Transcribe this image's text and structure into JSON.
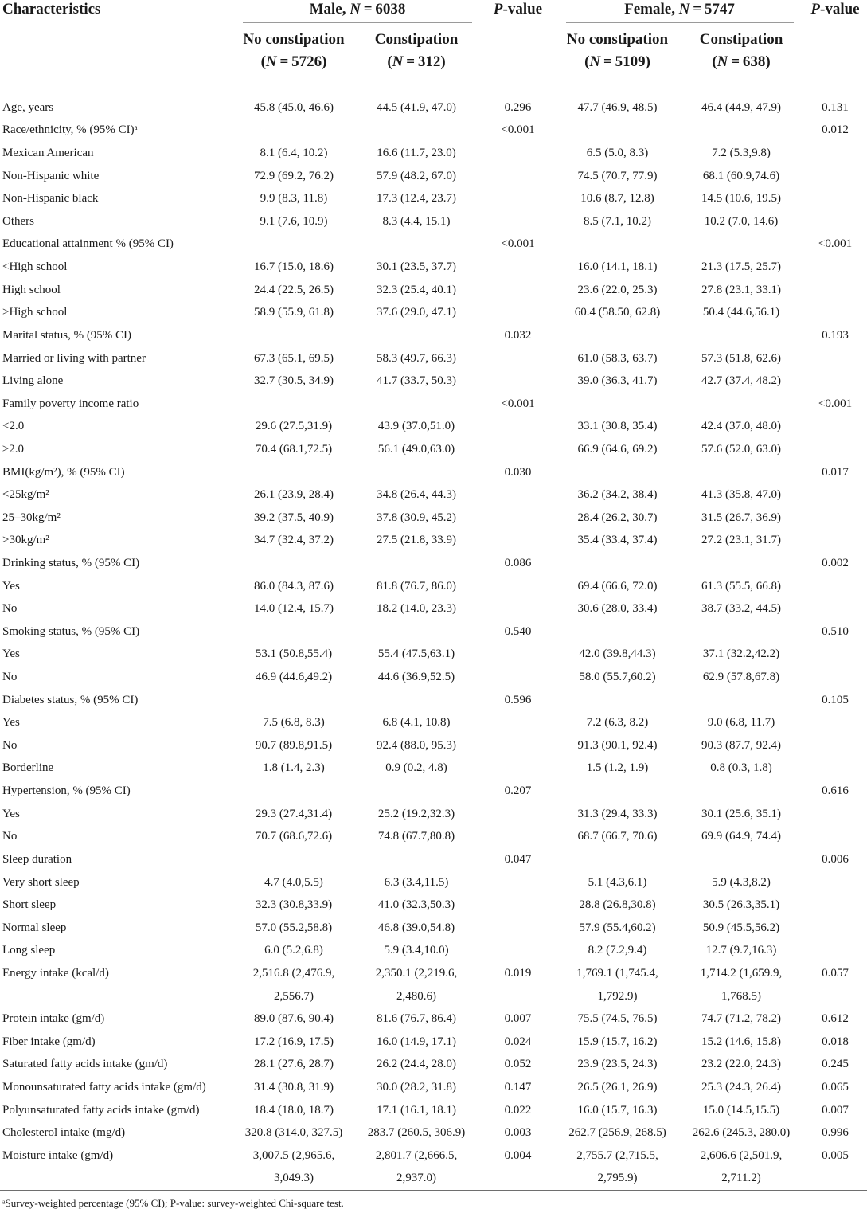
{
  "header": {
    "characteristics": "Characteristics",
    "male_group": "Male, N = 6038",
    "female_group": "Female, N = 5747",
    "pvalue_male": "P-value",
    "pvalue_female": "P-value",
    "male_no_constipation": "No constipation",
    "male_no_constipation_n": "(N = 5726)",
    "male_constipation": "Constipation",
    "male_constipation_n": "(N = 312)",
    "female_no_constipation": "No constipation",
    "female_no_constipation_n": "(N = 5109)",
    "female_constipation": "Constipation",
    "female_constipation_n": "(N = 638)"
  },
  "rows": [
    [
      "Age, years",
      "45.8 (45.0, 46.6)",
      "44.5 (41.9, 47.0)",
      "0.296",
      "47.7 (46.9, 48.5)",
      "46.4 (44.9, 47.9)",
      "0.131"
    ],
    [
      "Race/ethnicity, % (95% CI)ᵃ",
      "",
      "",
      "<0.001",
      "",
      "",
      "0.012"
    ],
    [
      "Mexican American",
      "8.1 (6.4, 10.2)",
      "16.6 (11.7, 23.0)",
      "",
      "6.5 (5.0, 8.3)",
      "7.2 (5.3,9.8)",
      ""
    ],
    [
      "Non-Hispanic white",
      "72.9 (69.2, 76.2)",
      "57.9 (48.2, 67.0)",
      "",
      "74.5 (70.7, 77.9)",
      "68.1 (60.9,74.6)",
      ""
    ],
    [
      "Non-Hispanic black",
      "9.9 (8.3, 11.8)",
      "17.3 (12.4, 23.7)",
      "",
      "10.6 (8.7, 12.8)",
      "14.5 (10.6, 19.5)",
      ""
    ],
    [
      "Others",
      "9.1 (7.6, 10.9)",
      "8.3 (4.4, 15.1)",
      "",
      "8.5 (7.1, 10.2)",
      "10.2 (7.0, 14.6)",
      ""
    ],
    [
      "Educational attainment % (95% CI)",
      "",
      "",
      "<0.001",
      "",
      "",
      "<0.001"
    ],
    [
      "<High school",
      "16.7 (15.0, 18.6)",
      "30.1 (23.5, 37.7)",
      "",
      "16.0 (14.1, 18.1)",
      "21.3 (17.5, 25.7)",
      ""
    ],
    [
      "High school",
      "24.4 (22.5, 26.5)",
      "32.3 (25.4, 40.1)",
      "",
      "23.6 (22.0, 25.3)",
      "27.8 (23.1, 33.1)",
      ""
    ],
    [
      ">High school",
      "58.9 (55.9, 61.8)",
      "37.6 (29.0, 47.1)",
      "",
      "60.4 (58.50, 62.8)",
      "50.4 (44.6,56.1)",
      ""
    ],
    [
      "Marital status, % (95% CI)",
      "",
      "",
      "0.032",
      "",
      "",
      "0.193"
    ],
    [
      "Married or living with partner",
      "67.3 (65.1, 69.5)",
      "58.3 (49.7, 66.3)",
      "",
      "61.0 (58.3, 63.7)",
      "57.3 (51.8, 62.6)",
      ""
    ],
    [
      "Living alone",
      "32.7 (30.5, 34.9)",
      "41.7 (33.7, 50.3)",
      "",
      "39.0 (36.3, 41.7)",
      "42.7 (37.4, 48.2)",
      ""
    ],
    [
      "Family poverty income ratio",
      "",
      "",
      "<0.001",
      "",
      "",
      "<0.001"
    ],
    [
      "<2.0",
      "29.6 (27.5,31.9)",
      "43.9 (37.0,51.0)",
      "",
      "33.1 (30.8, 35.4)",
      "42.4 (37.0, 48.0)",
      ""
    ],
    [
      "≥2.0",
      "70.4 (68.1,72.5)",
      "56.1 (49.0,63.0)",
      "",
      "66.9 (64.6, 69.2)",
      "57.6 (52.0, 63.0)",
      ""
    ],
    [
      "BMI(kg/m²), % (95% CI)",
      "",
      "",
      "0.030",
      "",
      "",
      "0.017"
    ],
    [
      "<25kg/m²",
      "26.1 (23.9, 28.4)",
      "34.8 (26.4, 44.3)",
      "",
      "36.2 (34.2, 38.4)",
      "41.3 (35.8, 47.0)",
      ""
    ],
    [
      "25–30kg/m²",
      "39.2 (37.5, 40.9)",
      "37.8 (30.9, 45.2)",
      "",
      "28.4 (26.2, 30.7)",
      "31.5 (26.7, 36.9)",
      ""
    ],
    [
      ">30kg/m²",
      "34.7 (32.4, 37.2)",
      "27.5 (21.8, 33.9)",
      "",
      "35.4 (33.4, 37.4)",
      "27.2 (23.1, 31.7)",
      ""
    ],
    [
      "Drinking status, % (95% CI)",
      "",
      "",
      "0.086",
      "",
      "",
      "0.002"
    ],
    [
      "Yes",
      "86.0 (84.3, 87.6)",
      "81.8 (76.7, 86.0)",
      "",
      "69.4 (66.6, 72.0)",
      "61.3 (55.5, 66.8)",
      ""
    ],
    [
      "No",
      "14.0 (12.4, 15.7)",
      "18.2 (14.0, 23.3)",
      "",
      "30.6 (28.0, 33.4)",
      "38.7 (33.2, 44.5)",
      ""
    ],
    [
      "Smoking status, % (95% CI)",
      "",
      "",
      "0.540",
      "",
      "",
      "0.510"
    ],
    [
      "Yes",
      "53.1 (50.8,55.4)",
      "55.4 (47.5,63.1)",
      "",
      "42.0 (39.8,44.3)",
      "37.1 (32.2,42.2)",
      ""
    ],
    [
      "No",
      "46.9 (44.6,49.2)",
      "44.6 (36.9,52.5)",
      "",
      "58.0 (55.7,60.2)",
      "62.9 (57.8,67.8)",
      ""
    ],
    [
      "Diabetes status, % (95% CI)",
      "",
      "",
      "0.596",
      "",
      "",
      "0.105"
    ],
    [
      "Yes",
      "7.5 (6.8, 8.3)",
      "6.8 (4.1, 10.8)",
      "",
      "7.2 (6.3, 8.2)",
      "9.0 (6.8, 11.7)",
      ""
    ],
    [
      "No",
      "90.7 (89.8,91.5)",
      "92.4 (88.0, 95.3)",
      "",
      "91.3 (90.1, 92.4)",
      "90.3 (87.7, 92.4)",
      ""
    ],
    [
      "Borderline",
      "1.8 (1.4, 2.3)",
      "0.9 (0.2, 4.8)",
      "",
      "1.5 (1.2, 1.9)",
      "0.8 (0.3, 1.8)",
      ""
    ],
    [
      "Hypertension, % (95% CI)",
      "",
      "",
      "0.207",
      "",
      "",
      "0.616"
    ],
    [
      "Yes",
      "29.3 (27.4,31.4)",
      "25.2 (19.2,32.3)",
      "",
      "31.3 (29.4, 33.3)",
      "30.1 (25.6, 35.1)",
      ""
    ],
    [
      "No",
      "70.7 (68.6,72.6)",
      "74.8 (67.7,80.8)",
      "",
      "68.7 (66.7, 70.6)",
      "69.9 (64.9, 74.4)",
      ""
    ],
    [
      "Sleep duration",
      "",
      "",
      "0.047",
      "",
      "",
      "0.006"
    ],
    [
      "Very short sleep",
      "4.7 (4.0,5.5)",
      "6.3 (3.4,11.5)",
      "",
      "5.1 (4.3,6.1)",
      "5.9 (4.3,8.2)",
      ""
    ],
    [
      "Short sleep",
      "32.3 (30.8,33.9)",
      "41.0 (32.3,50.3)",
      "",
      "28.8 (26.8,30.8)",
      "30.5 (26.3,35.1)",
      ""
    ],
    [
      "Normal sleep",
      "57.0 (55.2,58.8)",
      "46.8 (39.0,54.8)",
      "",
      "57.9 (55.4,60.2)",
      "50.9 (45.5,56.2)",
      ""
    ],
    [
      "Long sleep",
      "6.0 (5.2,6.8)",
      "5.9 (3.4,10.0)",
      "",
      "8.2 (7.2,9.4)",
      "12.7 (9.7,16.3)",
      ""
    ],
    [
      "Energy intake (kcal/d)",
      "2,516.8 (2,476.9,",
      "2,350.1 (2,219.6,",
      "0.019",
      "1,769.1 (1,745.4,",
      "1,714.2 (1,659.9,",
      "0.057"
    ],
    [
      "",
      "2,556.7)",
      "2,480.6)",
      "",
      "1,792.9)",
      "1,768.5)",
      ""
    ],
    [
      "Protein intake (gm/d)",
      "89.0 (87.6, 90.4)",
      "81.6 (76.7, 86.4)",
      "0.007",
      "75.5 (74.5, 76.5)",
      "74.7 (71.2, 78.2)",
      "0.612"
    ],
    [
      "Fiber intake (gm/d)",
      "17.2 (16.9, 17.5)",
      "16.0 (14.9, 17.1)",
      "0.024",
      "15.9 (15.7, 16.2)",
      "15.2 (14.6, 15.8)",
      "0.018"
    ],
    [
      "Saturated fatty acids intake (gm/d)",
      "28.1 (27.6, 28.7)",
      "26.2 (24.4, 28.0)",
      "0.052",
      "23.9 (23.5, 24.3)",
      "23.2 (22.0, 24.3)",
      "0.245"
    ],
    [
      "Monounsaturated fatty acids intake (gm/d)",
      "31.4 (30.8, 31.9)",
      "30.0 (28.2, 31.8)",
      "0.147",
      "26.5 (26.1, 26.9)",
      "25.3 (24.3, 26.4)",
      "0.065"
    ],
    [
      "Polyunsaturated fatty acids intake (gm/d)",
      "18.4 (18.0, 18.7)",
      "17.1 (16.1, 18.1)",
      "0.022",
      "16.0 (15.7, 16.3)",
      "15.0 (14.5,15.5)",
      "0.007"
    ],
    [
      "Cholesterol intake (mg/d)",
      "320.8 (314.0, 327.5)",
      "283.7 (260.5, 306.9)",
      "0.003",
      "262.7 (256.9, 268.5)",
      "262.6 (245.3, 280.0)",
      "0.996"
    ],
    [
      "Moisture intake (gm/d)",
      "3,007.5 (2,965.6,",
      "2,801.7 (2,666.5,",
      "0.004",
      "2,755.7 (2,715.5,",
      "2,606.6 (2,501.9,",
      "0.005"
    ],
    [
      "",
      "3,049.3)",
      "2,937.0)",
      "",
      "2,795.9)",
      "2,711.2)",
      ""
    ]
  ],
  "footnote": "ᵃSurvey-weighted percentage (95% CI); P-value: survey-weighted Chi-square test."
}
